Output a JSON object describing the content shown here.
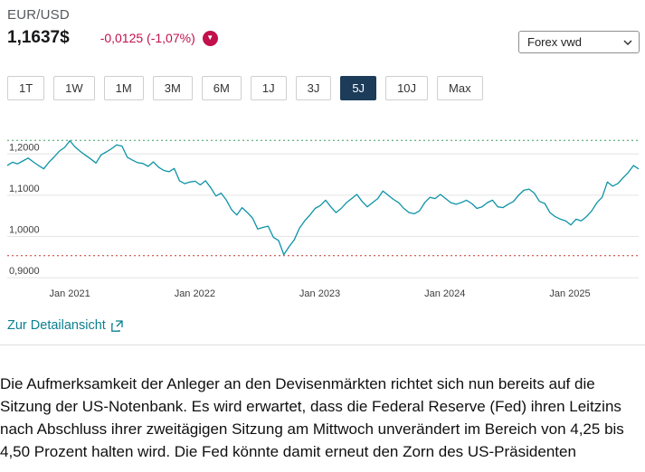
{
  "colors": {
    "accent_teal": "#0d93a6",
    "negative": "#c2104c",
    "active_range_bg": "#1c3c59",
    "link": "#0c7f91",
    "high_line": "#3f9e5f",
    "low_line": "#c0392b",
    "grid": "#e4e4e4"
  },
  "header": {
    "instrument": "EUR/USD",
    "price": "1,1637$",
    "change": "-0,0125 (-1,07%)",
    "change_direction": "down",
    "source_select": {
      "value": "Forex vwd"
    }
  },
  "range_buttons": [
    {
      "label": "1T",
      "active": false
    },
    {
      "label": "1W",
      "active": false
    },
    {
      "label": "1M",
      "active": false
    },
    {
      "label": "3M",
      "active": false
    },
    {
      "label": "6M",
      "active": false
    },
    {
      "label": "1J",
      "active": false
    },
    {
      "label": "3J",
      "active": false
    },
    {
      "label": "5J",
      "active": true
    },
    {
      "label": "10J",
      "active": false
    },
    {
      "label": "Max",
      "active": false
    }
  ],
  "chart_data": {
    "type": "line",
    "title": "EUR/USD 5 Jahre",
    "xlabel": "",
    "ylabel": "",
    "x_range": [
      2020.5,
      2025.55
    ],
    "ylim": [
      0.885,
      1.262
    ],
    "grid": true,
    "legend": "none",
    "y_ticks": [
      {
        "value": 1.2,
        "label": "1,2000"
      },
      {
        "value": 1.1,
        "label": "1,1000"
      },
      {
        "value": 1.0,
        "label": "1,0000"
      },
      {
        "value": 0.9,
        "label": "0,9000"
      }
    ],
    "x_ticks": [
      {
        "x": 2021.0,
        "label": "Jan 2021"
      },
      {
        "x": 2022.0,
        "label": "Jan 2022"
      },
      {
        "x": 2023.0,
        "label": "Jan 2023"
      },
      {
        "x": 2024.0,
        "label": "Jan 2024"
      },
      {
        "x": 2025.0,
        "label": "Jan 2025"
      }
    ],
    "high_line": 1.233,
    "low_line": 0.9536,
    "series": [
      {
        "name": "EUR/USD",
        "values": [
          1.172,
          1.18,
          1.176,
          1.183,
          1.19,
          1.181,
          1.172,
          1.164,
          1.18,
          1.193,
          1.207,
          1.216,
          1.232,
          1.217,
          1.206,
          1.197,
          1.188,
          1.178,
          1.198,
          1.205,
          1.213,
          1.222,
          1.219,
          1.192,
          1.185,
          1.179,
          1.177,
          1.17,
          1.181,
          1.168,
          1.16,
          1.157,
          1.165,
          1.135,
          1.128,
          1.132,
          1.134,
          1.125,
          1.135,
          1.118,
          1.098,
          1.105,
          1.088,
          1.065,
          1.052,
          1.07,
          1.058,
          1.045,
          1.018,
          1.022,
          1.025,
          0.998,
          0.99,
          0.956,
          0.975,
          0.992,
          1.02,
          1.038,
          1.052,
          1.068,
          1.075,
          1.088,
          1.072,
          1.058,
          1.068,
          1.082,
          1.092,
          1.102,
          1.085,
          1.072,
          1.082,
          1.092,
          1.11,
          1.1,
          1.09,
          1.082,
          1.068,
          1.058,
          1.055,
          1.062,
          1.082,
          1.095,
          1.092,
          1.102,
          1.092,
          1.082,
          1.078,
          1.082,
          1.088,
          1.08,
          1.068,
          1.072,
          1.082,
          1.088,
          1.072,
          1.07,
          1.078,
          1.085,
          1.1,
          1.112,
          1.115,
          1.105,
          1.085,
          1.08,
          1.058,
          1.048,
          1.042,
          1.038,
          1.028,
          1.042,
          1.038,
          1.048,
          1.062,
          1.082,
          1.095,
          1.132,
          1.122,
          1.128,
          1.142,
          1.155,
          1.172,
          1.1637
        ]
      }
    ]
  },
  "detail_link": {
    "label": "Zur Detailansicht"
  },
  "article": {
    "text": "Die Aufmerksamkeit der Anleger an den Devisenmärkten richtet sich nun bereits auf die Sitzung der US-Notenbank. Es wird erwartet, dass die Federal Reserve (Fed) ihren Leitzins nach Abschluss ihrer zweitägigen Sitzung am Mittwoch unverändert im Bereich von 4,25 bis 4,50 Prozent halten wird. Die Fed könnte damit erneut den Zorn des US-Präsidenten"
  }
}
